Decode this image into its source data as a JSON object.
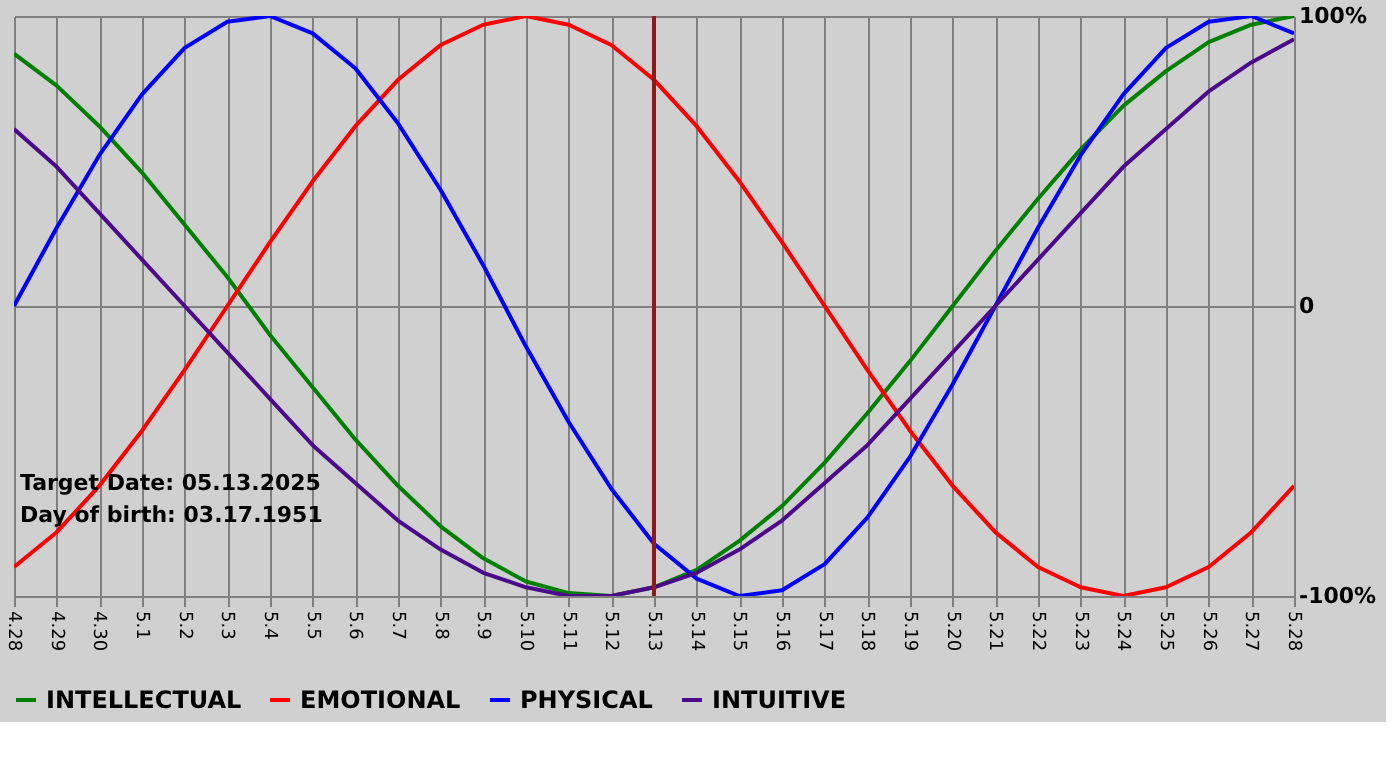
{
  "chart_data": {
    "type": "line",
    "categories": [
      "4.28",
      "4.29",
      "4.30",
      "5.1",
      "5.2",
      "5.3",
      "5.4",
      "5.5",
      "5.6",
      "5.7",
      "5.8",
      "5.9",
      "5.10",
      "5.11",
      "5.12",
      "5.13",
      "5.14",
      "5.15",
      "5.16",
      "5.17",
      "5.18",
      "5.19",
      "5.20",
      "5.21",
      "5.22",
      "5.23",
      "5.24",
      "5.25",
      "5.26",
      "5.27",
      "5.28"
    ],
    "series": [
      {
        "name": "INTELLECTUAL",
        "color": "#008000",
        "values": [
          87,
          76,
          62,
          46,
          28,
          10,
          -10,
          -28,
          -46,
          -62,
          -76,
          -87,
          -95,
          -99,
          -100,
          -97,
          -91,
          -81,
          -69,
          -54,
          -37,
          -19,
          0,
          19,
          37,
          54,
          69,
          81,
          91,
          97,
          100
        ]
      },
      {
        "name": "EMOTIONAL",
        "color": "#ff0000",
        "values": [
          -90,
          -78,
          -62,
          -43,
          -22,
          0,
          22,
          43,
          62,
          78,
          90,
          97,
          100,
          97,
          90,
          78,
          62,
          43,
          22,
          0,
          -22,
          -43,
          -62,
          -78,
          -90,
          -97,
          -100,
          -97,
          -90,
          -78,
          -62
        ]
      },
      {
        "name": "PHYSICAL",
        "color": "#0000ff",
        "values": [
          0,
          27,
          52,
          73,
          89,
          98,
          100,
          94,
          82,
          63,
          40,
          14,
          -14,
          -40,
          -63,
          -82,
          -94,
          -100,
          -98,
          -89,
          -73,
          -52,
          -27,
          0,
          27,
          52,
          73,
          89,
          98,
          100,
          94
        ]
      },
      {
        "name": "INTUITIVE",
        "color": "#4b0a8a",
        "values": [
          61,
          48,
          32,
          16,
          0,
          -16,
          -32,
          -48,
          -61,
          -74,
          -84,
          -92,
          -97,
          -100,
          -100,
          -97,
          -92,
          -84,
          -74,
          -61,
          -48,
          -32,
          -16,
          0,
          16,
          32,
          48,
          61,
          74,
          84,
          92
        ]
      }
    ],
    "ylim": [
      -100,
      100
    ],
    "yticks": [
      {
        "value": 100,
        "label": "100%"
      },
      0,
      {
        "value": -100,
        "label": "-100%"
      }
    ],
    "ref_lines": [
      {
        "axis": "x",
        "value": "5.13",
        "color": "#8b1a1a"
      }
    ],
    "annotations": [
      "Target Date: 05.13.2025",
      "Day of birth: 03.17.1951"
    ],
    "grid": true,
    "legend": "bottom",
    "marker": "none",
    "line_style": "solid"
  }
}
